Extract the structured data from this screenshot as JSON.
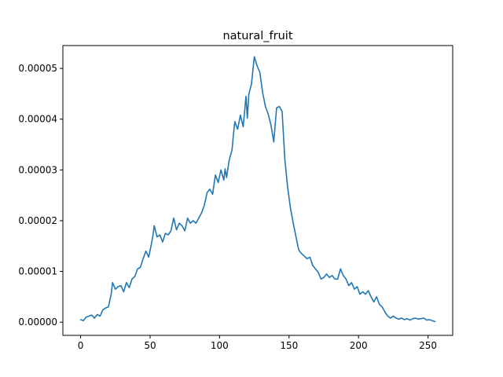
{
  "chart_data": {
    "type": "line",
    "title": "natural_fruit",
    "xlabel": "",
    "ylabel": "",
    "xlim": [
      -12.75,
      267.75
    ],
    "ylim": [
      -2.6e-06,
      5.45e-05
    ],
    "xticks": [
      0,
      50,
      100,
      150,
      200,
      250
    ],
    "xtick_labels": [
      "0",
      "50",
      "100",
      "150",
      "200",
      "250"
    ],
    "yticks": [
      0,
      1e-05,
      2e-05,
      3e-05,
      4e-05,
      5e-05
    ],
    "ytick_labels": [
      "0.00000",
      "0.00001",
      "0.00002",
      "0.00003",
      "0.00004",
      "0.00005"
    ],
    "grid": false,
    "line_color": "#1f77b4",
    "series": [
      {
        "x": [
          0,
          2,
          4,
          6,
          8,
          10,
          12,
          14,
          16,
          18,
          20,
          22,
          23,
          25,
          27,
          29,
          31,
          33,
          35,
          37,
          39,
          41,
          43,
          45,
          47,
          49,
          51,
          52,
          53,
          55,
          57,
          59,
          61,
          63,
          65,
          67,
          69,
          71,
          73,
          75,
          77,
          79,
          81,
          83,
          85,
          87,
          89,
          91,
          93,
          95,
          97,
          99,
          101,
          103,
          104,
          105,
          107,
          109,
          110,
          111,
          113,
          115,
          117,
          119,
          120,
          121,
          123,
          125,
          127,
          129,
          131,
          133,
          135,
          137,
          139,
          141,
          143,
          145,
          147,
          149,
          151,
          153,
          155,
          157,
          159,
          161,
          163,
          165,
          167,
          169,
          171,
          173,
          175,
          177,
          179,
          181,
          183,
          185,
          187,
          189,
          191,
          193,
          195,
          197,
          199,
          201,
          203,
          205,
          207,
          209,
          211,
          213,
          215,
          217,
          219,
          221,
          223,
          225,
          227,
          229,
          231,
          233,
          235,
          237,
          239,
          241,
          243,
          245,
          247,
          249,
          251,
          253,
          255
        ],
        "y": [
          5e-07,
          3e-07,
          1e-06,
          1.2e-06,
          1.4e-06,
          8e-07,
          1.5e-06,
          1.2e-06,
          2.4e-06,
          2.8e-06,
          3e-06,
          5.5e-06,
          7.8e-06,
          6.5e-06,
          7e-06,
          7.2e-06,
          6e-06,
          7.8e-06,
          6.8e-06,
          8.5e-06,
          9e-06,
          1.05e-05,
          1.08e-05,
          1.25e-05,
          1.4e-05,
          1.28e-05,
          1.55e-05,
          1.7e-05,
          1.9e-05,
          1.68e-05,
          1.72e-05,
          1.58e-05,
          1.75e-05,
          1.72e-05,
          1.8e-05,
          2.05e-05,
          1.82e-05,
          1.95e-05,
          1.9e-05,
          1.8e-05,
          2.05e-05,
          1.95e-05,
          2e-05,
          1.95e-05,
          2.05e-05,
          2.15e-05,
          2.3e-05,
          2.55e-05,
          2.62e-05,
          2.52e-05,
          2.9e-05,
          2.75e-05,
          3e-05,
          2.8e-05,
          3.02e-05,
          2.85e-05,
          3.2e-05,
          3.4e-05,
          3.7e-05,
          3.95e-05,
          3.8e-05,
          4.08e-05,
          3.85e-05,
          4.45e-05,
          4.02e-05,
          4.48e-05,
          4.7e-05,
          5.23e-05,
          5.05e-05,
          4.92e-05,
          4.52e-05,
          4.25e-05,
          4.1e-05,
          3.88e-05,
          3.55e-05,
          4.22e-05,
          4.25e-05,
          4.15e-05,
          3.2e-05,
          2.65e-05,
          2.25e-05,
          1.95e-05,
          1.68e-05,
          1.42e-05,
          1.35e-05,
          1.3e-05,
          1.25e-05,
          1.28e-05,
          1.12e-05,
          1.05e-05,
          9.8e-06,
          8.5e-06,
          8.8e-06,
          9.5e-06,
          8.8e-06,
          9.2e-06,
          8.5e-06,
          8.5e-06,
          1.05e-05,
          9.2e-06,
          8.5e-06,
          7.2e-06,
          7.8e-06,
          6.5e-06,
          7e-06,
          5.5e-06,
          6e-06,
          5.5e-06,
          6.2e-06,
          5e-06,
          4e-06,
          5e-06,
          3.5e-06,
          3e-06,
          2e-06,
          1.2e-06,
          8e-07,
          1.2e-06,
          8e-07,
          6e-07,
          8e-07,
          5e-07,
          7e-07,
          4e-07,
          7e-07,
          8e-07,
          6e-07,
          7e-07,
          8e-07,
          4e-07,
          5e-07,
          3e-07,
          1e-07
        ]
      }
    ]
  }
}
